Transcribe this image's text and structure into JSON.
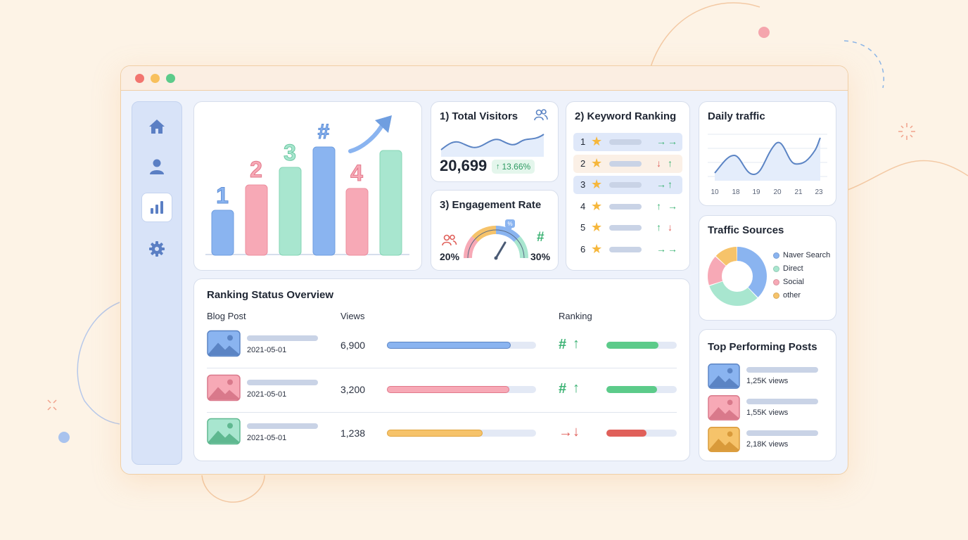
{
  "colors": {
    "blue": "#8ab4f0",
    "pink": "#f7a9b6",
    "mint": "#9fe0c4",
    "orange": "#f6c36a",
    "green": "#3bb273",
    "red": "#e0605a",
    "line": "#5b84c4"
  },
  "hero": {
    "labels": [
      "1",
      "2",
      "3",
      "#",
      "4"
    ]
  },
  "visitors": {
    "title": "1) Total Visitors",
    "value": "20,699",
    "change": "13.66%"
  },
  "engagement": {
    "title": "3) Engagement Rate",
    "left_value": "20%",
    "right_value": "30%",
    "left_icon": "users-icon",
    "right_icon": "hashtag-icon"
  },
  "keywords": {
    "title": "2) Keyword Ranking",
    "rows": [
      {
        "rank": "1",
        "trend": [
          "right",
          "right"
        ]
      },
      {
        "rank": "2",
        "trend": [
          "down",
          "up"
        ]
      },
      {
        "rank": "3",
        "trend": [
          "right",
          "up"
        ]
      },
      {
        "rank": "4",
        "trend": [
          "up",
          "right"
        ]
      },
      {
        "rank": "5",
        "trend": [
          "up",
          "down"
        ]
      },
      {
        "rank": "6",
        "trend": [
          "right",
          "right"
        ]
      }
    ]
  },
  "daily": {
    "title": "Daily traffic",
    "x_labels": [
      "10",
      "18",
      "19",
      "20",
      "21",
      "23"
    ]
  },
  "sources": {
    "title": "Traffic Sources",
    "items": [
      {
        "name": "Naver Search",
        "color": "#8ab4f0",
        "share": 0.38
      },
      {
        "name": "Direct",
        "color": "#a8e6cf",
        "share": 0.32
      },
      {
        "name": "Social",
        "color": "#f7a9b6",
        "share": 0.17
      },
      {
        "name": "other",
        "color": "#f6c36a",
        "share": 0.13
      }
    ]
  },
  "overview": {
    "title": "Ranking Status Overview",
    "col_post": "Blog Post",
    "col_views": "Views",
    "col_ranking": "Ranking",
    "rows": [
      {
        "date": "2021-05-01",
        "views": "6,900",
        "views_fill": 0.83,
        "rank_fill": 0.74,
        "thumb": "blue",
        "rank_trend": "up"
      },
      {
        "date": "2021-05-01",
        "views": "3,200",
        "views_fill": 0.82,
        "rank_fill": 0.72,
        "thumb": "pink",
        "rank_trend": "up"
      },
      {
        "date": "2021-05-01",
        "views": "1,238",
        "views_fill": 0.64,
        "rank_fill": 0.57,
        "thumb": "mint",
        "rank_trend": "down"
      }
    ]
  },
  "top_posts": {
    "title": "Top Performing Posts",
    "items": [
      {
        "views": "1,25K views",
        "thumb": "blue"
      },
      {
        "views": "1,55K views",
        "thumb": "pink"
      },
      {
        "views": "2,18K views",
        "thumb": "orange"
      }
    ]
  }
}
